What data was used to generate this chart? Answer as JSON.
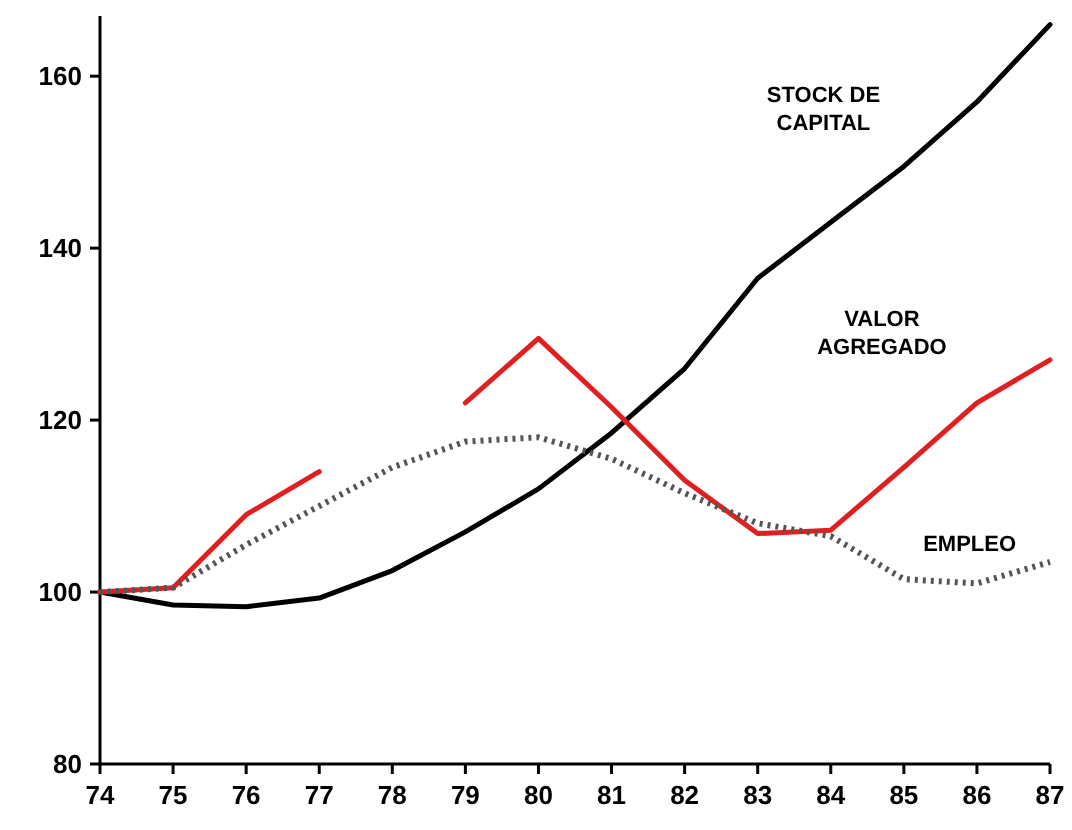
{
  "chart_data": {
    "type": "line",
    "x": [
      74,
      75,
      76,
      77,
      78,
      79,
      80,
      81,
      82,
      83,
      84,
      85,
      86,
      87
    ],
    "xlim": [
      74,
      87
    ],
    "xticks": [
      74,
      75,
      76,
      77,
      78,
      79,
      80,
      81,
      82,
      83,
      84,
      85,
      86,
      87
    ],
    "ylim": [
      80,
      167
    ],
    "yticks": [
      80,
      100,
      120,
      140,
      160
    ],
    "grid": false,
    "marker": "none",
    "series": [
      {
        "name": "STOCK DE CAPITAL",
        "color": "#000000",
        "line_style": "solid",
        "values": [
          100,
          98.5,
          98.3,
          99.3,
          102.5,
          107,
          112,
          118.5,
          126,
          136.5,
          143,
          149.5,
          157,
          166
        ]
      },
      {
        "name": "VALOR AGREGADO",
        "color": "#e02020",
        "line_style": "solid",
        "values": [
          100,
          100.5,
          109,
          114,
          null,
          122,
          129.5,
          121.5,
          113,
          106.8,
          107.2,
          114.5,
          122,
          127
        ]
      },
      {
        "name": "EMPLEO",
        "color": "#555555",
        "line_style": "dotted",
        "values": [
          100,
          100.5,
          105.5,
          110,
          114.5,
          117.5,
          118,
          115.5,
          111.5,
          108,
          106.5,
          101.5,
          101,
          103.5
        ]
      }
    ]
  }
}
